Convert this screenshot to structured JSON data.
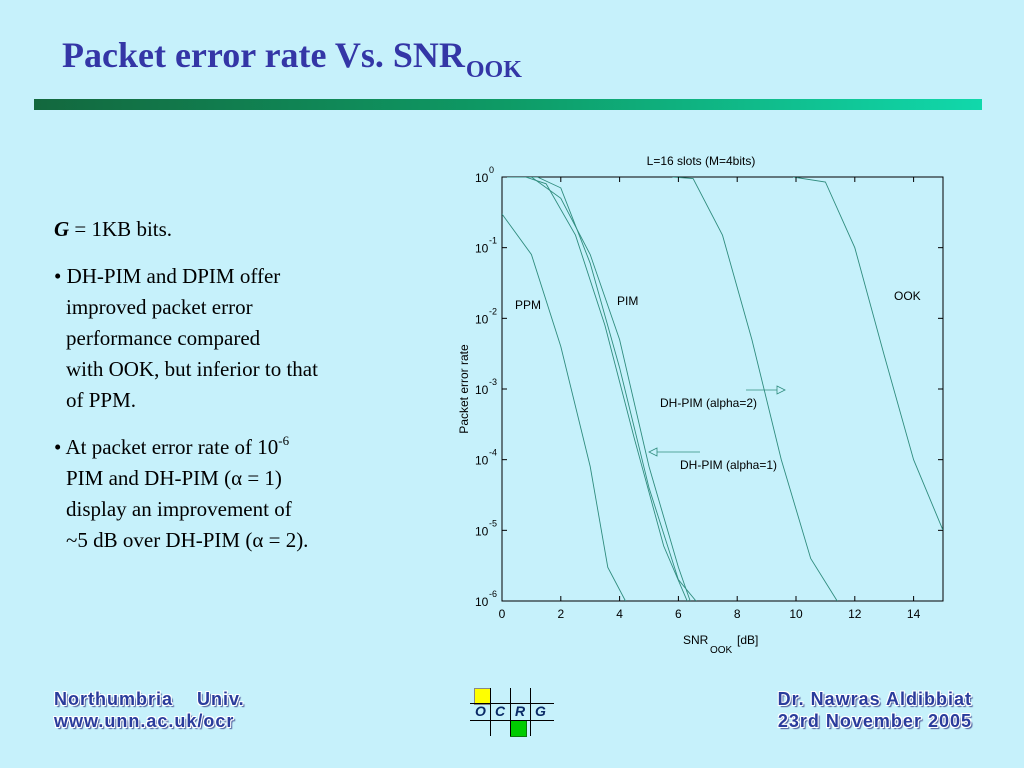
{
  "slide": {
    "title_main": "Packet error rate Vs. SNR",
    "title_sub": "OOK"
  },
  "bullets": {
    "g_label": "G",
    "g_rest": " = 1KB bits.",
    "b1_lines": [
      "• DH-PIM and DPIM offer",
      "improved packet error",
      "performance compared",
      "with OOK, but inferior to that",
      "of PPM."
    ],
    "b2_line1_pre": "• At packet error rate of 10",
    "b2_line1_sup": "-6",
    "b2_line2": "PIM and DH-PIM (α = 1)",
    "b2_line3": "display an improvement of",
    "b2_line4": "~5 dB over DH-PIM  (α = 2)."
  },
  "footer": {
    "left_line1": "Northumbria    Univ.",
    "left_line2": "www.unn.ac.uk/ocr",
    "right_line1": "Dr. Nawras Aldibbiat",
    "right_line2": "23rd November 2005",
    "logo_letters": [
      "O",
      "C",
      "R",
      "G"
    ]
  },
  "colors": {
    "background": "#c6f1fb",
    "title": "#3436a6",
    "curve": "#2f8c7e",
    "footer_text": "#2a3c9c",
    "logo_yellow": "#ffff00",
    "logo_green": "#00cc00"
  },
  "chart_data": {
    "type": "line",
    "title": "L=16 slots (M=4bits)",
    "xlabel_main": "SNR",
    "xlabel_sub": "OOK",
    "xlabel_unit": "[dB]",
    "ylabel": "Packet error rate",
    "xlim": [
      0,
      15
    ],
    "ylim_exponent": [
      -6,
      0
    ],
    "y_scale": "log",
    "xticks": [
      "0",
      "2",
      "4",
      "6",
      "8",
      "10",
      "12",
      "14"
    ],
    "ytick_base": "10",
    "ytick_exponents": [
      "0",
      "-1",
      "-2",
      "-3",
      "-4",
      "-5",
      "-6"
    ],
    "series": [
      {
        "name": "PPM",
        "x": [
          0,
          1,
          2,
          3,
          3.6,
          4.2
        ],
        "y": [
          0.3,
          0.08,
          0.004,
          8e-05,
          3e-06,
          1e-06
        ]
      },
      {
        "name": "DH-PIM (alpha=1)",
        "x": [
          0,
          1,
          2,
          3,
          4,
          5,
          6,
          6.4
        ],
        "y": [
          1,
          1,
          0.5,
          0.08,
          0.005,
          8e-05,
          3e-06,
          1e-06
        ]
      },
      {
        "name": "PIM",
        "x": [
          0.8,
          1.5,
          2.5,
          3.5,
          4.5,
          5.5,
          6.3
        ],
        "y": [
          1,
          0.8,
          0.15,
          0.008,
          0.0002,
          6e-06,
          1e-06
        ]
      },
      {
        "name": "DH-PIM (alpha=2)",
        "x": [
          0.8,
          1.2,
          2,
          3,
          4,
          5,
          6,
          6.6
        ],
        "y": [
          1,
          1,
          0.7,
          0.06,
          0.002,
          4e-05,
          2e-06,
          1e-06
        ]
      },
      {
        "name": "OOK",
        "x": [
          5.8,
          6.5,
          7.5,
          8.5,
          9.5,
          10.5,
          11.4
        ],
        "y": [
          1,
          0.95,
          0.15,
          0.005,
          0.0001,
          4e-06,
          1e-06
        ]
      },
      {
        "name": "OOK",
        "x": [
          9.9,
          11,
          12,
          13,
          14,
          15
        ],
        "y": [
          1,
          0.85,
          0.1,
          0.003,
          0.0001,
          1e-05
        ]
      }
    ],
    "annotations": [
      "PPM",
      "PIM",
      "OOK",
      "DH-PIM (alpha=2)",
      "DH-PIM (alpha=1)"
    ]
  }
}
